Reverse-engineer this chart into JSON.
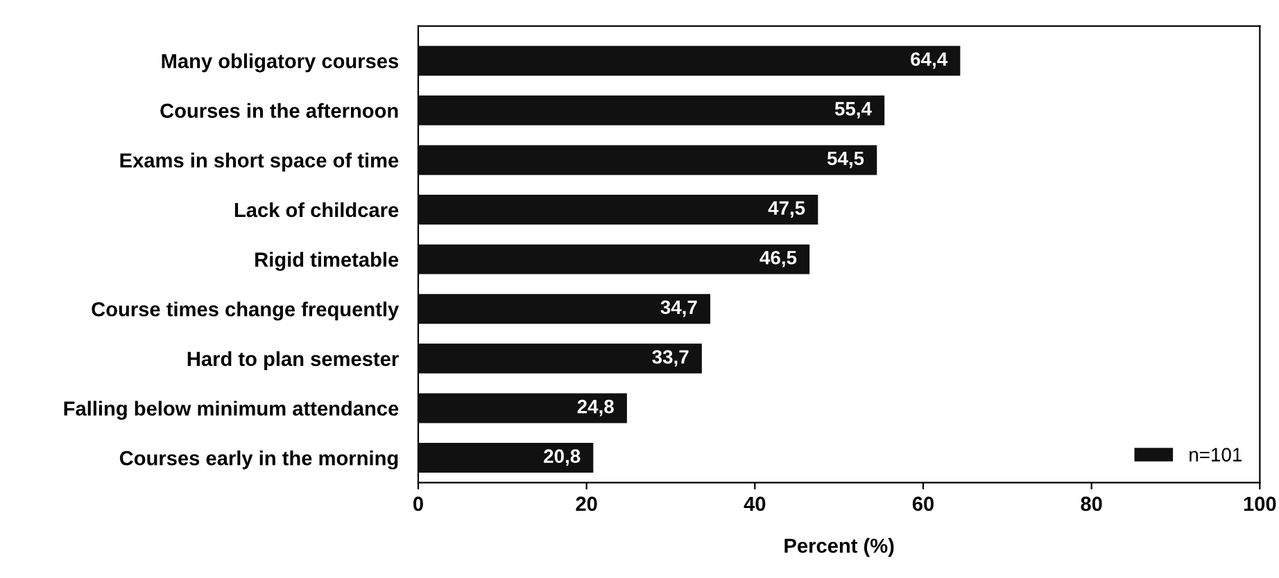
{
  "chart_data": {
    "type": "bar",
    "orientation": "horizontal",
    "xlabel": "Percent (%)",
    "categories": [
      "Many obligatory courses",
      "Courses in the afternoon",
      "Exams in short space of time",
      "Lack of childcare",
      "Rigid timetable",
      "Course times change frequently",
      "Hard to plan semester",
      "Falling below minimum attendance",
      "Courses early in the morning"
    ],
    "series": [
      {
        "name": "n=101",
        "color": "#111111",
        "values": [
          64.4,
          55.4,
          54.5,
          47.5,
          46.5,
          34.7,
          33.7,
          24.8,
          20.8
        ],
        "value_labels": [
          "64,4",
          "55,4",
          "54,5",
          "47,5",
          "46,5",
          "34,7",
          "33,7",
          "24,8",
          "20,8"
        ]
      }
    ],
    "xlim": [
      0,
      100
    ],
    "xticks": [
      0,
      20,
      40,
      60,
      80,
      100
    ],
    "grid": false,
    "legend": "bottom right"
  }
}
